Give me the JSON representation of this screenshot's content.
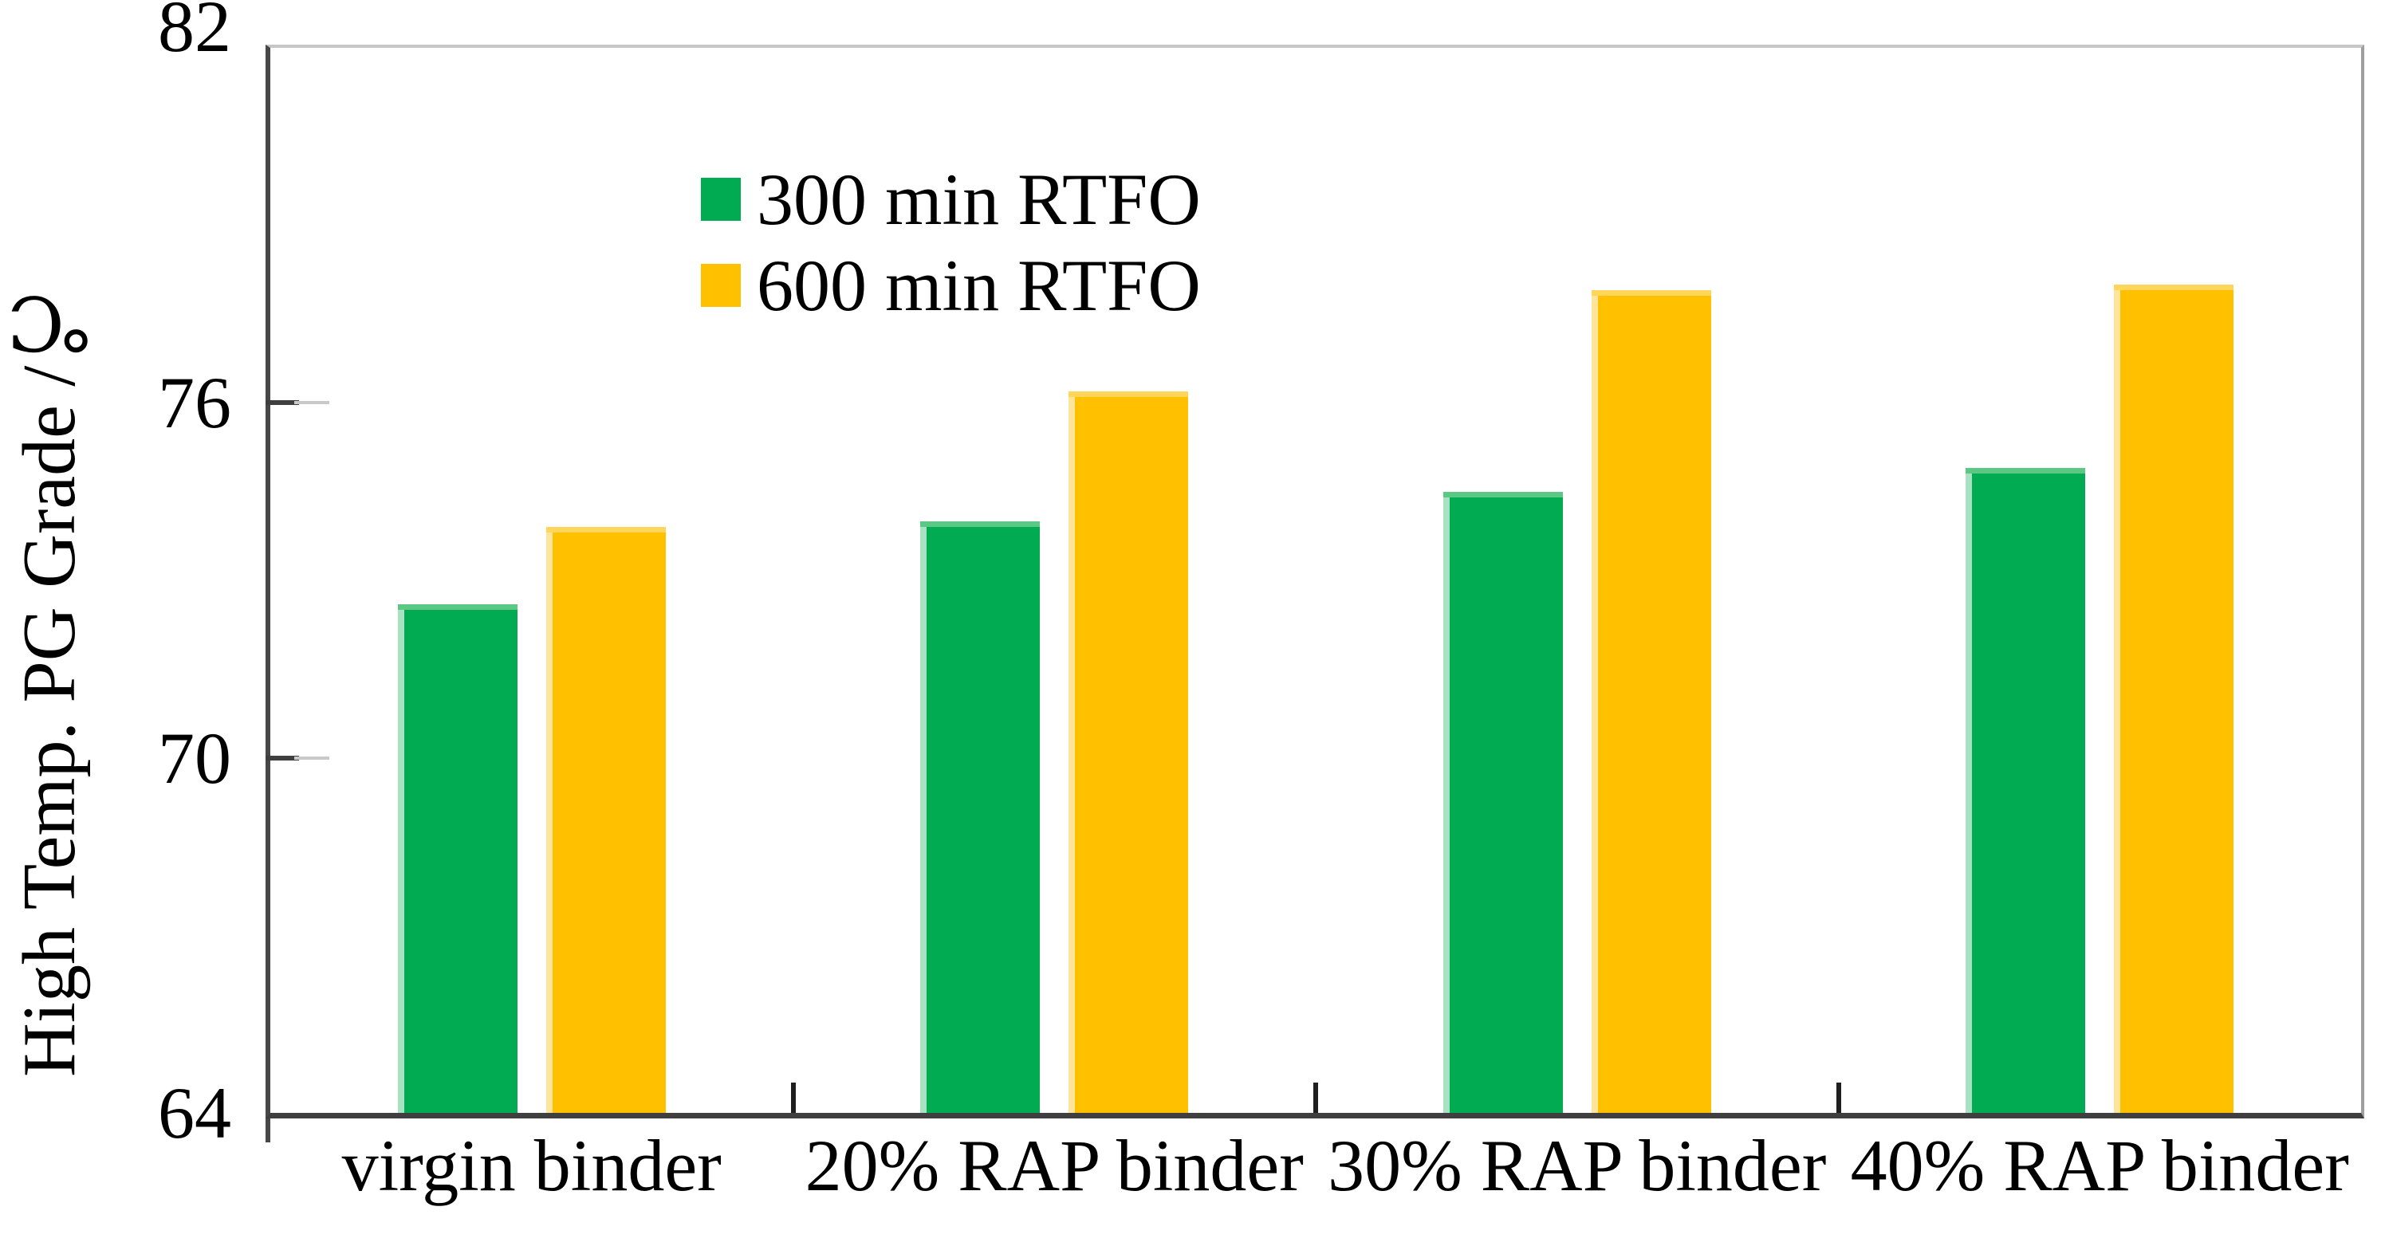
{
  "chart_data": {
    "type": "bar",
    "title": "",
    "ylabel": "High Temp. PG Grade /℃",
    "xlabel": "",
    "ylim": [
      64,
      82
    ],
    "yticks": [
      82,
      76,
      70,
      64
    ],
    "grid": false,
    "legend_position": "top-left-inside",
    "categories": [
      "virgin binder",
      "20% RAP binder",
      "30% RAP binder",
      "40% RAP binder"
    ],
    "series": [
      {
        "name": "300 min RTFO",
        "color": "#00AB51",
        "highlight": "#A9E2C2",
        "top_highlight": "#5BC983",
        "values": [
          72.6,
          74.0,
          74.5,
          74.9
        ]
      },
      {
        "name": "600 min RTFO",
        "color": "#FFC000",
        "highlight": "#FFE59B",
        "top_highlight": "#FFD659",
        "values": [
          73.9,
          76.2,
          77.9,
          78.0
        ]
      }
    ]
  }
}
